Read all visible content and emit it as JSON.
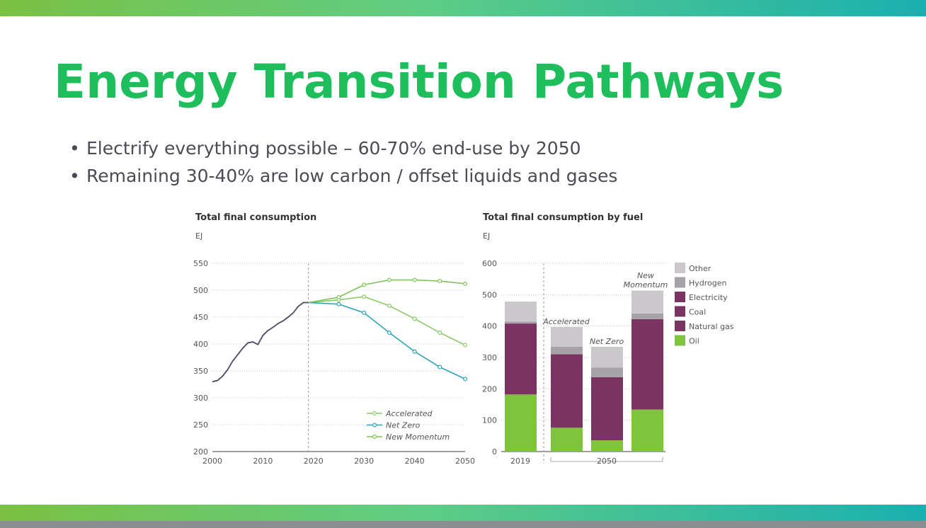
{
  "slide": {
    "title": "Energy Transition Pathways",
    "bullets": [
      "Electrify everything possible – 60-70% end-use by 2050",
      "Remaining 30-40% are low carbon / offset liquids and gases"
    ],
    "bullet_symbol": "•",
    "colors": {
      "title": "#1fbe5c",
      "bar_start": "#7bc143",
      "bar_end": "#1ab0b0",
      "bottom_strip": "#8b8d90"
    }
  },
  "chart_data": [
    {
      "type": "line",
      "title": "Total final consumption",
      "ylabel": "EJ",
      "xlim": [
        2000,
        2050
      ],
      "ylim": [
        200,
        550
      ],
      "xticks": [
        2000,
        2010,
        2020,
        2030,
        2040,
        2050
      ],
      "yticks": [
        200,
        250,
        300,
        350,
        400,
        450,
        500,
        550
      ],
      "grid": "horizontal dotted",
      "divider_x": 2019,
      "legend_position": "bottom-right",
      "history": {
        "color": "#4a4a63",
        "x": [
          2000,
          2001,
          2002,
          2003,
          2004,
          2005,
          2006,
          2007,
          2008,
          2009,
          2010,
          2011,
          2012,
          2013,
          2014,
          2015,
          2016,
          2017,
          2018,
          2019
        ],
        "y": [
          330,
          332,
          340,
          352,
          368,
          380,
          392,
          402,
          404,
          399,
          416,
          425,
          431,
          438,
          443,
          450,
          458,
          470,
          477,
          477
        ]
      },
      "series": [
        {
          "name": "Accelerated",
          "color": "#8cc96a",
          "x": [
            2019,
            2025,
            2030,
            2035,
            2040,
            2045,
            2050
          ],
          "y": [
            477,
            482,
            488,
            471,
            447,
            421,
            398
          ]
        },
        {
          "name": "Net Zero",
          "color": "#2ba3b5",
          "x": [
            2019,
            2025,
            2030,
            2035,
            2040,
            2045,
            2050
          ],
          "y": [
            477,
            474,
            458,
            421,
            386,
            357,
            335
          ]
        },
        {
          "name": "New Momentum",
          "color": "#7fc45a",
          "x": [
            2019,
            2025,
            2030,
            2035,
            2040,
            2045,
            2050
          ],
          "y": [
            477,
            487,
            510,
            519,
            519,
            517,
            512
          ]
        }
      ]
    },
    {
      "type": "bar",
      "stacked": true,
      "title": "Total final consumption by fuel",
      "ylabel": "EJ",
      "ylim": [
        0,
        600
      ],
      "yticks": [
        0,
        100,
        200,
        300,
        400,
        500,
        600
      ],
      "grid": "horizontal dotted",
      "legend_position": "right",
      "categories": [
        "2019",
        "Accelerated",
        "Net Zero",
        "New Momentum"
      ],
      "x_tick_labels": [
        "2019",
        "2050"
      ],
      "legend": [
        "Other",
        "Hydrogen",
        "Electricity",
        "Coal",
        "Natural gas",
        "Oil"
      ],
      "series": [
        {
          "name": "Oil",
          "color": "#7fc43d",
          "values": [
            182,
            76,
            36,
            134
          ]
        },
        {
          "name": "Natural gas",
          "color": "#7b3461",
          "values": [
            226,
            234,
            201,
            288
          ]
        },
        {
          "name": "Hydrogen",
          "color": "#a6a3a8",
          "values": [
            6,
            24,
            31,
            18
          ]
        },
        {
          "name": "Other",
          "color": "#cbc8cc",
          "values": [
            64,
            63,
            66,
            73
          ]
        }
      ],
      "legend_colors": {
        "Other": "#cbc8cc",
        "Hydrogen": "#a6a3a8",
        "Electricity": "#7b3461",
        "Coal": "#7b3461",
        "Natural gas": "#7b3461",
        "Oil": "#7fc43d"
      }
    }
  ]
}
